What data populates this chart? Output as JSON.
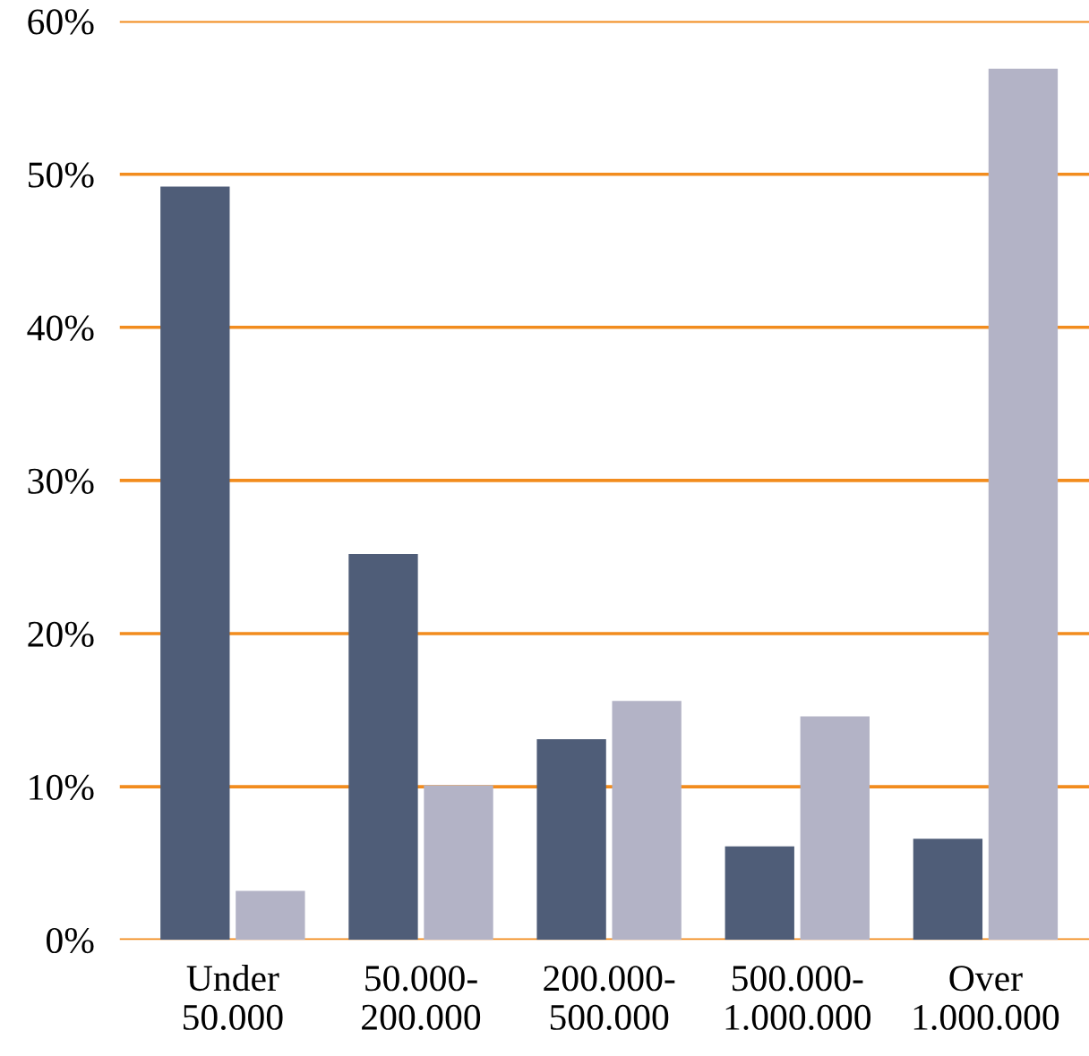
{
  "chart_data": {
    "type": "bar",
    "categories": [
      "Under\n50.000",
      "50.000-\n200.000",
      "200.000-\n500.000",
      "500.000-\n1.000.000",
      "Over\n1.000.000"
    ],
    "series": [
      {
        "color": "#4f5d78",
        "values": [
          49.2,
          25.2,
          13.1,
          6.1,
          6.6
        ]
      },
      {
        "color": "#b3b3c6",
        "values": [
          3.2,
          10.1,
          15.6,
          14.6,
          56.9
        ]
      }
    ],
    "ylim": [
      0,
      60
    ],
    "yticks": [
      {
        "value": 0,
        "label": "0%"
      },
      {
        "value": 10,
        "label": "10%"
      },
      {
        "value": 20,
        "label": "20%"
      },
      {
        "value": 30,
        "label": "30%"
      },
      {
        "value": 40,
        "label": "40%"
      },
      {
        "value": 50,
        "label": "50%"
      },
      {
        "value": 60,
        "label": "60%"
      }
    ],
    "grid": "y",
    "legend": false
  }
}
